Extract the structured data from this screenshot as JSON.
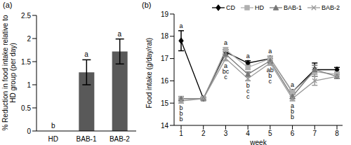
{
  "chart_data": [
    {
      "type": "bar",
      "title": "(a)",
      "ylabel": "% Reduction in food intake relative to HD group (per day)",
      "categories": [
        "HD",
        "BAB-1",
        "BAB-2"
      ],
      "values": [
        0,
        1.27,
        1.72
      ],
      "errors": [
        0,
        0.27,
        0.27
      ],
      "letters": [
        "b",
        "a",
        "a"
      ],
      "color": "#595959",
      "ylim": [
        0,
        2.5
      ],
      "yticks": [
        0,
        0.5,
        1,
        1.5,
        2,
        2.5
      ]
    },
    {
      "type": "line",
      "title": "(b)",
      "ylabel": "Food intake (g/day/rat)",
      "xlabel": "week",
      "categories": [
        "1",
        "2",
        "3",
        "4",
        "5",
        "6",
        "7",
        "8"
      ],
      "ylim": [
        14,
        19
      ],
      "yticks": [
        14,
        15,
        16,
        17,
        18,
        19
      ],
      "legend": "top right",
      "series": [
        {
          "name": "CD",
          "color": "#000000",
          "marker": "diamond",
          "values": [
            17.8,
            15.2,
            17.3,
            16.8,
            17.0,
            15.5,
            16.5,
            16.5
          ],
          "errors": [
            0.45,
            0.05,
            0.1,
            0.1,
            0.1,
            0.1,
            0.3,
            0.1
          ]
        },
        {
          "name": "HD",
          "color": "#b0b0b0",
          "marker": "square",
          "values": [
            15.2,
            15.2,
            17.4,
            16.6,
            17.0,
            15.5,
            16.4,
            16.3
          ],
          "errors": [
            0.1,
            0.05,
            0.1,
            0.1,
            0.1,
            0.1,
            0.2,
            0.1
          ]
        },
        {
          "name": "BAB-1",
          "color": "#777777",
          "marker": "triangle",
          "values": [
            15.2,
            15.2,
            17.2,
            16.3,
            16.9,
            15.3,
            16.5,
            16.2
          ],
          "errors": [
            0.1,
            0.05,
            0.1,
            0.1,
            0.1,
            0.1,
            0.2,
            0.1
          ]
        },
        {
          "name": "BAB-2",
          "color": "#999999",
          "marker": "x",
          "values": [
            15.1,
            15.2,
            17.0,
            16.1,
            16.8,
            15.2,
            16.0,
            16.2
          ],
          "errors": [
            0.1,
            0.05,
            0.1,
            0.1,
            0.1,
            0.1,
            0.2,
            0.1
          ]
        }
      ],
      "annotations": [
        {
          "category": "1",
          "labels": [
            "a",
            "b",
            "b",
            "b"
          ]
        },
        {
          "category": "3",
          "labels": [
            "a",
            "a",
            "bc",
            "c"
          ]
        },
        {
          "category": "4",
          "labels": [
            "a",
            "b",
            "c",
            "c"
          ]
        },
        {
          "category": "5",
          "labels": [
            "a",
            "ab",
            "b",
            "c"
          ]
        },
        {
          "category": "6",
          "labels": [
            "a",
            "a",
            "b",
            "b"
          ]
        }
      ]
    }
  ]
}
